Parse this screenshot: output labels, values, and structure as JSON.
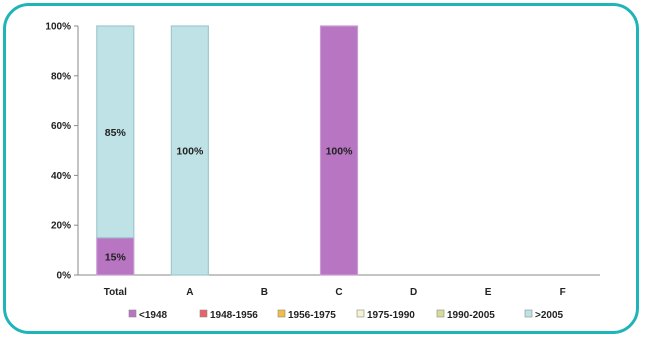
{
  "chart_data": {
    "type": "bar",
    "stacked": true,
    "percent": true,
    "categories": [
      "Total",
      "A",
      "B",
      "C",
      "D",
      "E",
      "F"
    ],
    "yticks": [
      "0%",
      "20%",
      "40%",
      "60%",
      "80%",
      "100%"
    ],
    "ylim": [
      0,
      100
    ],
    "grid": false,
    "legend_position": "bottom",
    "series": [
      {
        "name": "<1948",
        "color": "#b775c2",
        "values": [
          15,
          0,
          0,
          100,
          0,
          0,
          0
        ],
        "labels": [
          "15%",
          "",
          "",
          "100%",
          "",
          "",
          ""
        ]
      },
      {
        "name": "1948-1956",
        "color": "#e8626a",
        "values": [
          0,
          0,
          0,
          0,
          0,
          0,
          0
        ],
        "labels": [
          "",
          "",
          "",
          "",
          "",
          "",
          ""
        ]
      },
      {
        "name": "1956-1975",
        "color": "#f0bd45",
        "values": [
          0,
          0,
          0,
          0,
          0,
          0,
          0
        ],
        "labels": [
          "",
          "",
          "",
          "",
          "",
          "",
          ""
        ]
      },
      {
        "name": "1975-1990",
        "color": "#f6f1cf",
        "values": [
          0,
          0,
          0,
          0,
          0,
          0,
          0
        ],
        "labels": [
          "",
          "",
          "",
          "",
          "",
          "",
          ""
        ]
      },
      {
        "name": "1990-2005",
        "color": "#d6dc95",
        "values": [
          0,
          0,
          0,
          0,
          0,
          0,
          0
        ],
        "labels": [
          "",
          "",
          "",
          "",
          "",
          "",
          ""
        ]
      },
      {
        "name": ">2005",
        "color": "#bfe2e6",
        "values": [
          85,
          100,
          0,
          0,
          0,
          0,
          0
        ],
        "labels": [
          "85%",
          "100%",
          "",
          "",
          "",
          "",
          ""
        ]
      }
    ]
  }
}
